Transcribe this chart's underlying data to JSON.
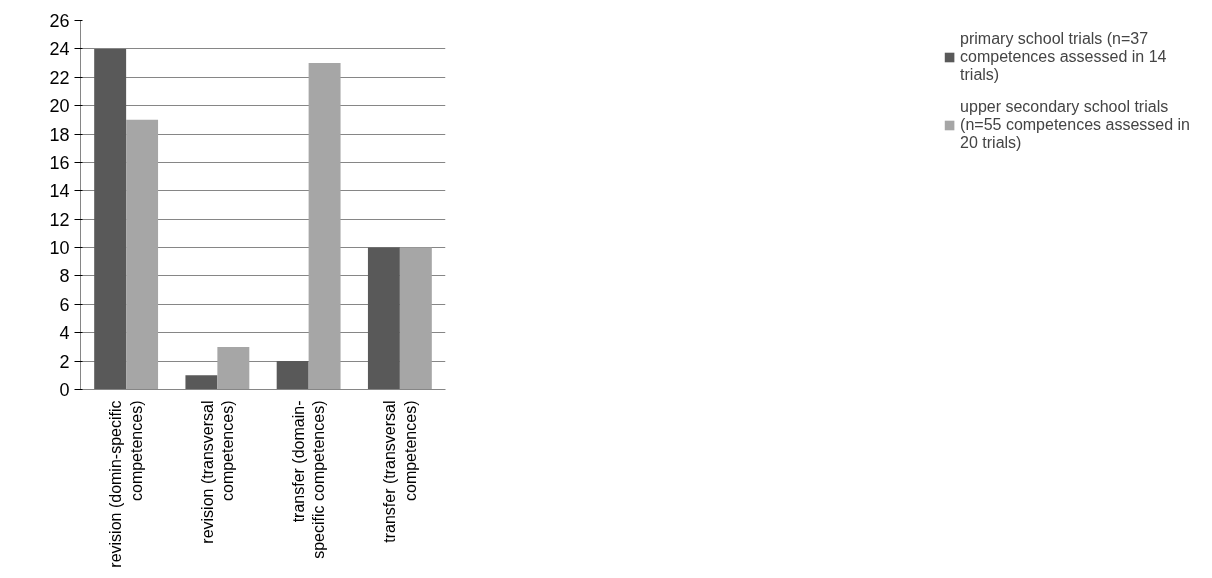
{
  "chart_data": {
    "type": "bar",
    "categories": [
      "revision (domin-specific competences)",
      "revision (transversal competences)",
      "transfer (domain-specific competences)",
      "transfer (transversal competences)"
    ],
    "series": [
      {
        "name": "primary school trials (n=37 competences assessed in 14 trials)",
        "color": "#595959",
        "values": [
          24,
          1,
          2,
          10
        ]
      },
      {
        "name": "upper secondary school trials (n=55 competences assessed in 20 trials)",
        "color": "#a6a6a6",
        "values": [
          19,
          3,
          23,
          10
        ]
      }
    ],
    "ylim": [
      0,
      26
    ],
    "yticks": [
      0,
      2,
      4,
      6,
      8,
      10,
      12,
      14,
      16,
      18,
      20,
      22,
      24,
      26
    ],
    "grid": "y",
    "legend": "right"
  }
}
